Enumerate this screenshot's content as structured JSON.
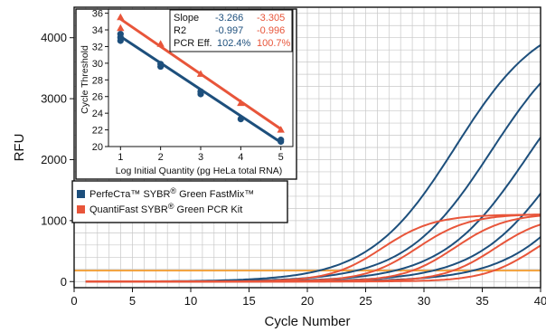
{
  "colors": {
    "blue": "#1d4f7c",
    "orange": "#e8553a",
    "threshold": "#f39a2b",
    "grid": "#c8c8c8"
  },
  "chart_data": [
    {
      "type": "line",
      "xlabel": "Cycle Number",
      "ylabel": "RFU",
      "xlim": [
        0,
        40
      ],
      "ylim": [
        -100,
        4500
      ],
      "xticks": [
        0,
        5,
        10,
        15,
        20,
        25,
        30,
        35,
        40
      ],
      "yticks": [
        0,
        1000,
        2000,
        3000,
        4000
      ],
      "threshold": 180,
      "grid": true,
      "legend_position": "left-middle",
      "series": [
        {
          "name": "PerfeCTa™ SYBR® Green FastMix™",
          "color": "#1d4f7c",
          "curves": [
            {
              "ct": 21.0,
              "plateau": 4420,
              "steep": 0.27
            },
            {
              "ct": 24.2,
              "plateau": 4300,
              "steep": 0.27
            },
            {
              "ct": 27.5,
              "plateau": 4150,
              "steep": 0.27
            },
            {
              "ct": 30.8,
              "plateau": 4000,
              "steep": 0.27
            },
            {
              "ct": 34.2,
              "plateau": 3800,
              "steep": 0.27
            }
          ]
        },
        {
          "name": "QuantiFast SYBR® Green PCR Kit",
          "color": "#e8553a",
          "curves": [
            {
              "ct": 22.8,
              "plateau": 1100,
              "steep": 0.45
            },
            {
              "ct": 25.8,
              "plateau": 1110,
              "steep": 0.45
            },
            {
              "ct": 29.0,
              "plateau": 1120,
              "steep": 0.45
            },
            {
              "ct": 32.5,
              "plateau": 1100,
              "steep": 0.45
            },
            {
              "ct": 36.0,
              "plateau": 1080,
              "steep": 0.45
            }
          ]
        }
      ]
    },
    {
      "type": "scatter",
      "xlabel": "Log Initial Quantity (pg HeLa total RNA)",
      "ylabel": "Cycle Threshold",
      "xlim": [
        0.7,
        5.3
      ],
      "ylim": [
        20,
        36.5
      ],
      "xticks": [
        1,
        2,
        3,
        4,
        5
      ],
      "yticks": [
        20,
        22,
        24,
        26,
        28,
        30,
        32,
        34,
        36
      ],
      "series": [
        {
          "name": "PerfeCTa™ SYBR® Green FastMix™",
          "color": "#1d4f7c",
          "marker": "circle",
          "x": [
            1,
            1,
            1,
            2,
            2,
            3,
            3,
            4,
            5,
            5
          ],
          "y": [
            32.7,
            33.1,
            33.5,
            29.6,
            29.9,
            26.3,
            26.6,
            23.3,
            20.6,
            20.8
          ],
          "fit": {
            "x": [
              1,
              5
            ],
            "y": [
              33.2,
              20.5
            ]
          }
        },
        {
          "name": "QuantiFast SYBR® Green PCR Kit",
          "color": "#e8553a",
          "marker": "triangle",
          "x": [
            1,
            1,
            2,
            3,
            4,
            5
          ],
          "y": [
            34.2,
            35.5,
            32.3,
            28.7,
            25.2,
            22.0
          ],
          "fit": {
            "x": [
              1,
              5
            ],
            "y": [
              35.3,
              22.1
            ]
          }
        }
      ],
      "stats": {
        "rows": [
          {
            "label": "Slope",
            "blue": "-3.266",
            "orange": "-3.305"
          },
          {
            "label": "R2",
            "blue": "-0.997",
            "orange": "-0.996"
          },
          {
            "label": "PCR Eff.",
            "blue": "102.4%",
            "orange": "100.7%"
          }
        ]
      }
    }
  ],
  "legend": {
    "items": [
      {
        "prefix": "PerfeCтa™ SYBR",
        "sup": "®",
        "suffix": " Green FastMix™"
      },
      {
        "prefix": "QuantiFast SYBR",
        "sup": "®",
        "suffix": " Green PCR Kit"
      }
    ]
  }
}
